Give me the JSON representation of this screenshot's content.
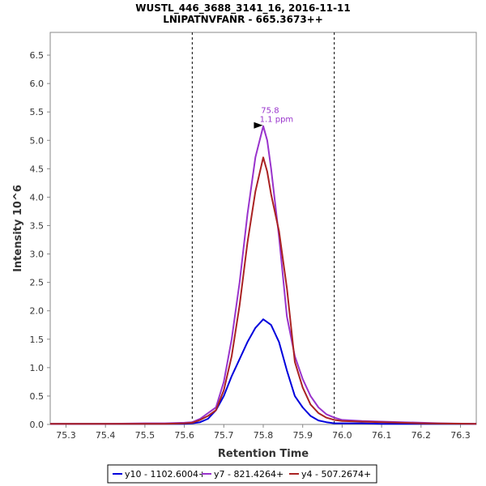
{
  "chart_data": {
    "type": "line",
    "title": "WUSTL_446_3688_3141_16, 2016-11-11",
    "subtitle": "LNIPATNVFANR - 665.3673++",
    "xlabel": "Retention Time",
    "ylabel": "Intensity 10^6",
    "xlim": [
      75.26,
      76.34
    ],
    "ylim": [
      0,
      6.9
    ],
    "x_ticks": [
      "75.3",
      "75.4",
      "75.5",
      "75.6",
      "75.7",
      "75.8",
      "75.9",
      "76.0",
      "76.1",
      "76.2",
      "76.3"
    ],
    "y_ticks": [
      "0.0",
      "0.5",
      "1.0",
      "1.5",
      "2.0",
      "2.5",
      "3.0",
      "3.5",
      "4.0",
      "4.5",
      "5.0",
      "5.5",
      "6.0",
      "6.5"
    ],
    "boundaries": [
      75.62,
      75.98
    ],
    "grid": false,
    "legend_position": "bottom",
    "annotation": {
      "rt_label": "75.8",
      "ppm_label": "1.1 ppm",
      "x": 75.805,
      "y": 5.25,
      "color": "#9933cc"
    },
    "series": [
      {
        "name": "y10 - 1102.6004+",
        "color": "#0000dd",
        "x": [
          75.26,
          75.3,
          75.4,
          75.5,
          75.55,
          75.6,
          75.62,
          75.64,
          75.66,
          75.68,
          75.7,
          75.72,
          75.74,
          75.76,
          75.78,
          75.8,
          75.81,
          75.82,
          75.84,
          75.86,
          75.88,
          75.9,
          75.92,
          75.94,
          75.96,
          75.98,
          76.0,
          76.05,
          76.1,
          76.2,
          76.34
        ],
        "y": [
          0.01,
          0.01,
          0.01,
          0.01,
          0.01,
          0.01,
          0.02,
          0.04,
          0.1,
          0.25,
          0.5,
          0.85,
          1.15,
          1.45,
          1.7,
          1.85,
          1.8,
          1.75,
          1.45,
          0.95,
          0.5,
          0.3,
          0.15,
          0.07,
          0.04,
          0.02,
          0.02,
          0.02,
          0.01,
          0.01,
          0.01
        ]
      },
      {
        "name": "y7 - 821.4264+",
        "color": "#9933cc",
        "x": [
          75.26,
          75.3,
          75.4,
          75.5,
          75.55,
          75.6,
          75.62,
          75.64,
          75.66,
          75.68,
          75.7,
          75.72,
          75.74,
          75.76,
          75.78,
          75.8,
          75.81,
          75.82,
          75.84,
          75.86,
          75.88,
          75.9,
          75.92,
          75.94,
          75.96,
          75.98,
          76.0,
          76.05,
          76.1,
          76.15,
          76.2,
          76.25,
          76.34
        ],
        "y": [
          0.01,
          0.01,
          0.01,
          0.02,
          0.02,
          0.03,
          0.04,
          0.1,
          0.2,
          0.3,
          0.75,
          1.5,
          2.5,
          3.7,
          4.7,
          5.25,
          5.0,
          4.5,
          3.3,
          1.9,
          1.2,
          0.8,
          0.5,
          0.3,
          0.18,
          0.12,
          0.08,
          0.06,
          0.05,
          0.04,
          0.03,
          0.02,
          0.01
        ]
      },
      {
        "name": "y4 - 507.2674+",
        "color": "#aa2222",
        "x": [
          75.26,
          75.3,
          75.4,
          75.5,
          75.55,
          75.6,
          75.62,
          75.64,
          75.66,
          75.68,
          75.7,
          75.72,
          75.74,
          75.76,
          75.78,
          75.8,
          75.81,
          75.82,
          75.84,
          75.86,
          75.88,
          75.9,
          75.92,
          75.94,
          75.96,
          75.98,
          76.0,
          76.05,
          76.1,
          76.15,
          76.2,
          76.34
        ],
        "y": [
          0.01,
          0.01,
          0.01,
          0.01,
          0.01,
          0.02,
          0.03,
          0.08,
          0.15,
          0.25,
          0.6,
          1.2,
          2.1,
          3.2,
          4.1,
          4.7,
          4.45,
          4.05,
          3.4,
          2.4,
          1.1,
          0.65,
          0.35,
          0.2,
          0.12,
          0.08,
          0.06,
          0.05,
          0.04,
          0.03,
          0.02,
          0.01
        ]
      }
    ]
  }
}
